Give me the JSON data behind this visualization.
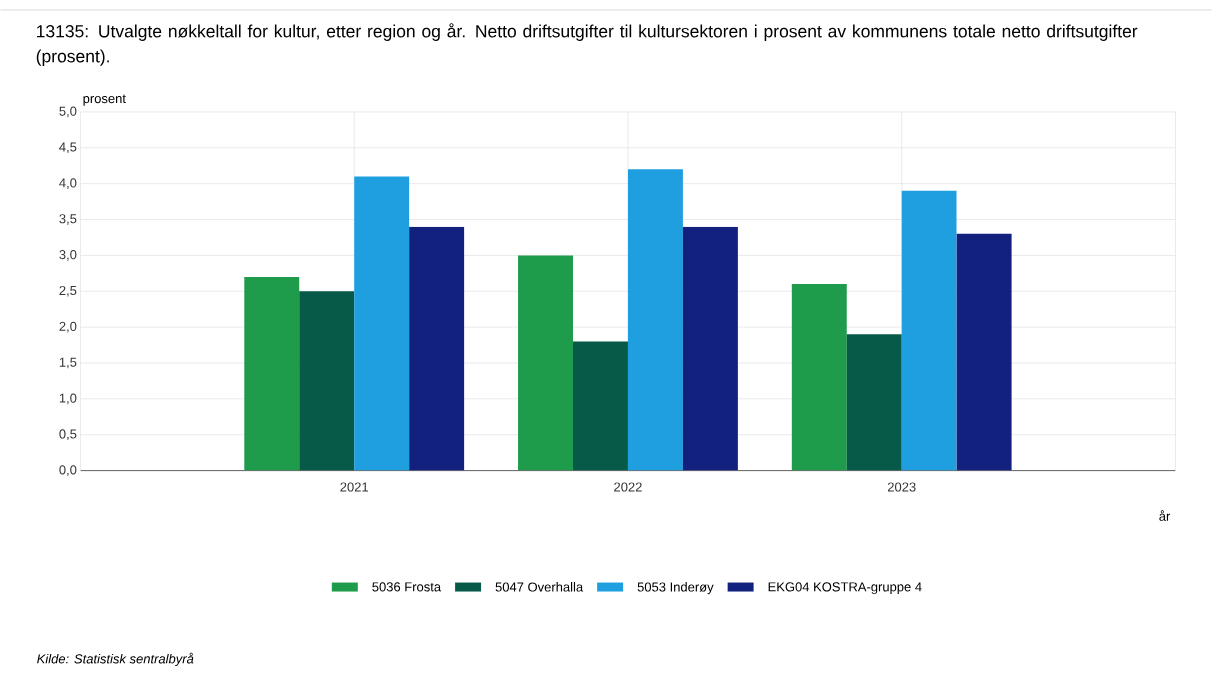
{
  "chart_data": {
    "type": "bar",
    "title": "13135: Utvalgte nøkkeltall for kultur, etter region og år. Netto driftsutgifter til kultursektoren i prosent av kommunens totale netto driftsutgifter (prosent).",
    "xlabel": "år",
    "ylabel": "prosent",
    "categories": [
      "2021",
      "2022",
      "2023"
    ],
    "series": [
      {
        "name": "5036 Frosta",
        "color": "#1e9c4b",
        "values": [
          2.7,
          3.0,
          2.6
        ]
      },
      {
        "name": "5047 Overhalla",
        "color": "#075a47",
        "values": [
          2.5,
          1.8,
          1.9
        ]
      },
      {
        "name": "5053 Inderøy",
        "color": "#1f9fe0",
        "values": [
          4.1,
          4.2,
          3.9
        ]
      },
      {
        "name": "EKG04 KOSTRA-gruppe 4",
        "color": "#12217d",
        "values": [
          3.4,
          3.4,
          3.3
        ]
      }
    ],
    "ylim": [
      0,
      5
    ],
    "yticks": [
      {
        "value": 0,
        "label": "0,0"
      },
      {
        "value": 0.5,
        "label": "0,5"
      },
      {
        "value": 1,
        "label": "1,0"
      },
      {
        "value": 1.5,
        "label": "1,5"
      },
      {
        "value": 2,
        "label": "2,0"
      },
      {
        "value": 2.5,
        "label": "2,5"
      },
      {
        "value": 3,
        "label": "3,0"
      },
      {
        "value": 3.5,
        "label": "3,5"
      },
      {
        "value": 4,
        "label": "4,0"
      },
      {
        "value": 4.5,
        "label": "4,5"
      },
      {
        "value": 5,
        "label": "5,0"
      }
    ],
    "grid": true,
    "legend": "bottom",
    "annotations": [
      "Kilde:  Statistisk sentralbyrå"
    ]
  }
}
